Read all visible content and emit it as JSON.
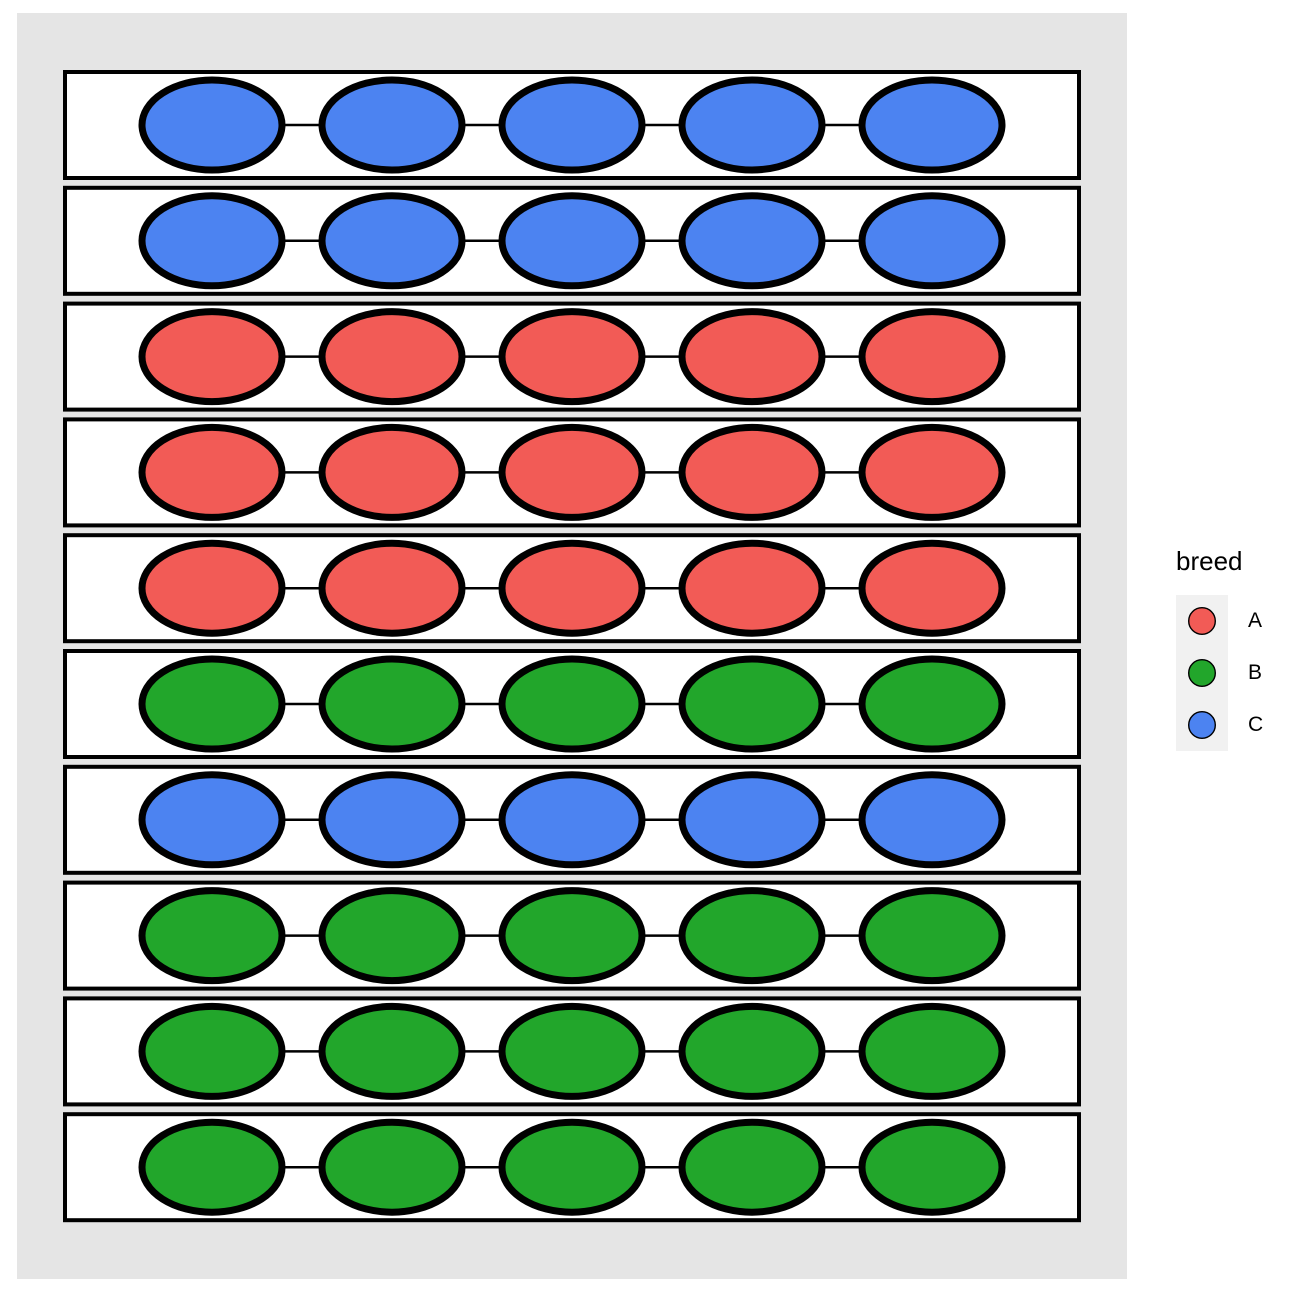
{
  "chart_data": {
    "type": "scatter",
    "marker": "ellipse",
    "title": "",
    "description": "Ten horizontal pen rectangles stacked vertically; each pen contains five ellipses (animals) joined left-to-right by a thin line; ellipse fill color encodes breed.",
    "items_per_row": 5,
    "rows": [
      {
        "row": 1,
        "breed": "C",
        "count": 5
      },
      {
        "row": 2,
        "breed": "C",
        "count": 5
      },
      {
        "row": 3,
        "breed": "A",
        "count": 5
      },
      {
        "row": 4,
        "breed": "A",
        "count": 5
      },
      {
        "row": 5,
        "breed": "A",
        "count": 5
      },
      {
        "row": 6,
        "breed": "B",
        "count": 5
      },
      {
        "row": 7,
        "breed": "C",
        "count": 5
      },
      {
        "row": 8,
        "breed": "B",
        "count": 5
      },
      {
        "row": 9,
        "breed": "B",
        "count": 5
      },
      {
        "row": 10,
        "breed": "B",
        "count": 5
      }
    ],
    "breed_colors": {
      "A": "#F25B56",
      "B": "#22A62B",
      "C": "#4C83F1"
    },
    "panel_background": "#E5E5E5",
    "row_fill": "#FFFFFF",
    "outline_color": "#000000",
    "grid": "off",
    "axes": "none",
    "legend": {
      "title": "breed",
      "position": "right",
      "key_background": "#F1F1F1",
      "entries": [
        {
          "label": "A",
          "color": "#F25B56"
        },
        {
          "label": "B",
          "color": "#22A62B"
        },
        {
          "label": "C",
          "color": "#4C83F1"
        }
      ]
    }
  }
}
